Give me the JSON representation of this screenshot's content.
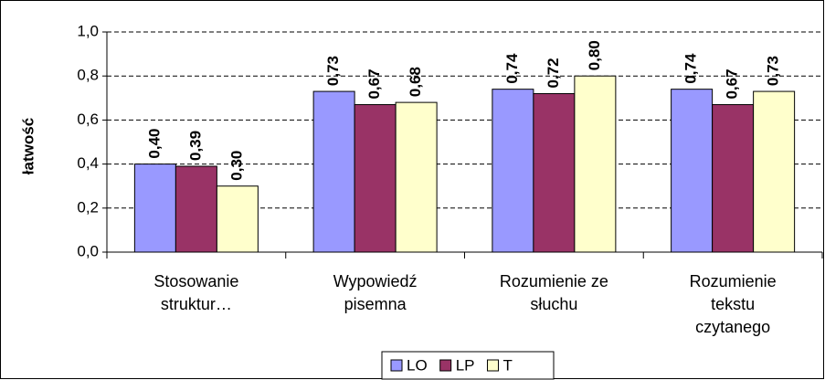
{
  "chart_data": {
    "type": "bar",
    "y_label": "łatwość",
    "categories": [
      "Stosowanie\nstruktur…",
      "Wypowiedź\npisemna",
      "Rozumienie ze\nsłuchu",
      "Rozumienie\ntekstu\nczytanego"
    ],
    "series": [
      {
        "name": "LO",
        "color": "#9999ff",
        "values": [
          0.4,
          0.73,
          0.74,
          0.74
        ],
        "value_labels": [
          "0,40",
          "0,73",
          "0,74",
          "0,74"
        ]
      },
      {
        "name": "LP",
        "color": "#993366",
        "values": [
          0.39,
          0.67,
          0.72,
          0.67
        ],
        "value_labels": [
          "0,39",
          "0,67",
          "0,72",
          "0,67"
        ]
      },
      {
        "name": "T",
        "color": "#ffffcc",
        "values": [
          0.3,
          0.68,
          0.8,
          0.73
        ],
        "value_labels": [
          "0,30",
          "0,68",
          "0,80",
          "0,73"
        ]
      }
    ],
    "ylim": [
      0,
      1
    ],
    "yticks": [
      {
        "value": 0,
        "label": "0,0"
      },
      {
        "value": 0.2,
        "label": "0,2"
      },
      {
        "value": 0.4,
        "label": "0,4"
      },
      {
        "value": 0.6,
        "label": "0,6"
      },
      {
        "value": 0.8,
        "label": "0,8"
      },
      {
        "value": 1,
        "label": "1,0"
      }
    ],
    "grid": true,
    "legend": "bottom"
  }
}
